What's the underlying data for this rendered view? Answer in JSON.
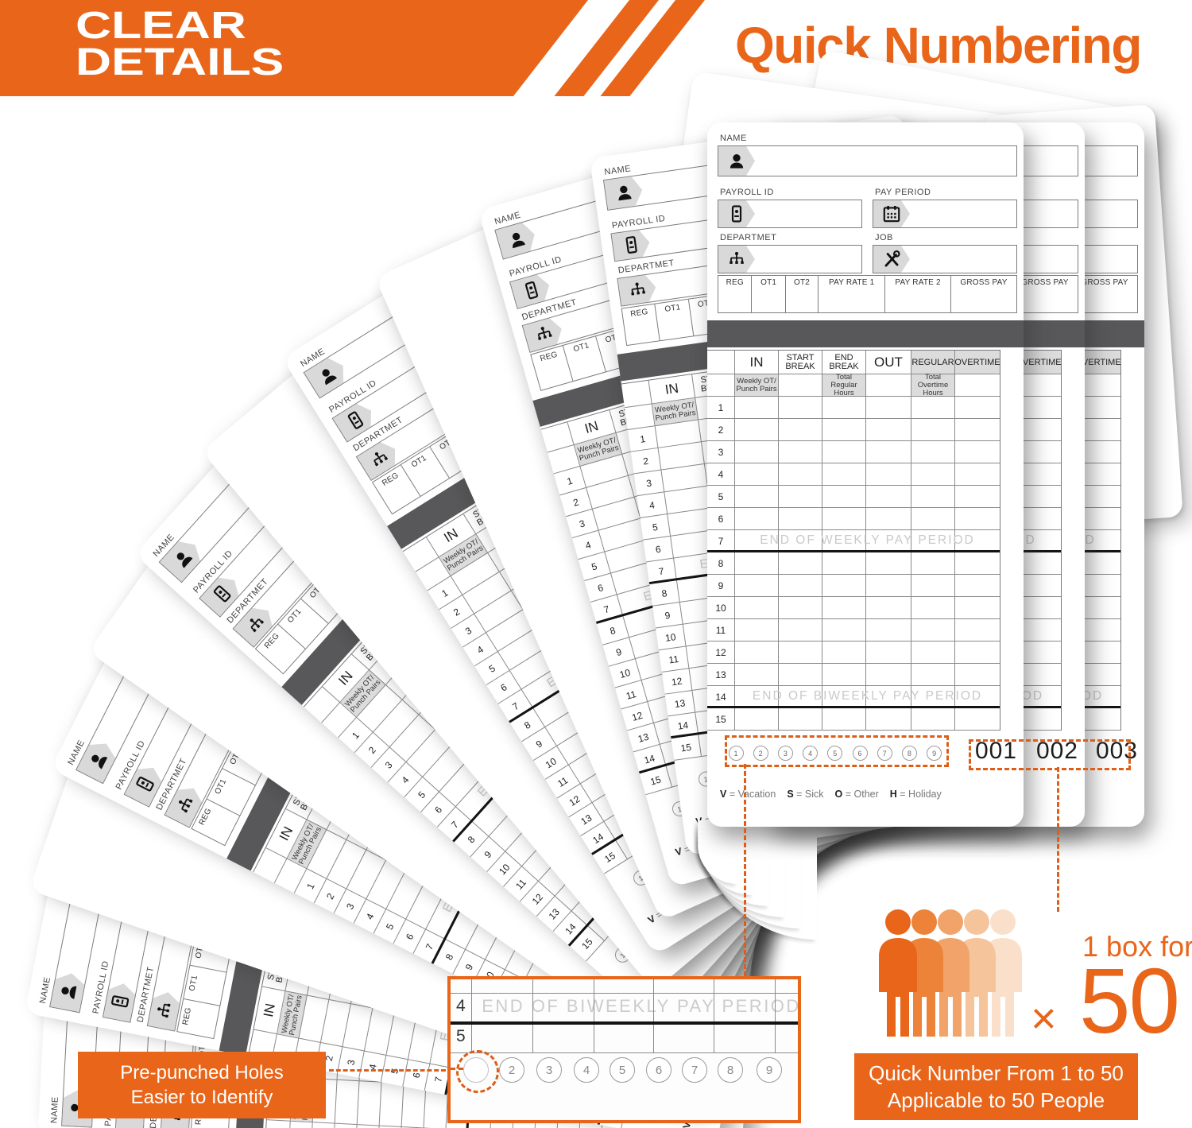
{
  "banner": {
    "line1": "CLEAR",
    "line2": "DETAILS"
  },
  "headline": "Quick Numbering",
  "card": {
    "fields": {
      "name": "NAME",
      "payroll": "PAYROLL ID",
      "pay_period": "PAY PERIOD",
      "department": "DEPARTMET",
      "job": "JOB"
    },
    "pay_columns": [
      "REG",
      "OT1",
      "OT2",
      "PAY RATE 1",
      "PAY RATE 2",
      "GROSS PAY"
    ],
    "time_columns": [
      "IN",
      "START BREAK",
      "END BREAK",
      "OUT",
      "REGULAR",
      "OVERTIME"
    ],
    "subheaders": {
      "in": "Weekly OT/\nPunch Pairs",
      "end_break": "Total Regular\nHours",
      "regular": "Total Overtime\nHours"
    },
    "rows": [
      1,
      2,
      3,
      4,
      5,
      6,
      7,
      8,
      9,
      10,
      11,
      12,
      13,
      14,
      15
    ],
    "watermark_weekly": "END OF WEEKLY PAY PERIOD",
    "watermark_biweekly": "END OF BIWEEKLY PAY PERIOD",
    "punch_numbers": [
      1,
      2,
      3,
      4,
      5,
      6,
      7,
      8,
      9
    ],
    "card_numbers": [
      "001",
      "002",
      "003"
    ],
    "legend": [
      {
        "key": "V",
        "value": "Vacation"
      },
      {
        "key": "S",
        "value": "Sick"
      },
      {
        "key": "O",
        "value": "Other"
      },
      {
        "key": "H",
        "value": "Holiday"
      }
    ]
  },
  "magnifier": {
    "row_labels": [
      "4",
      "5"
    ],
    "watermark": "END OF BIWEEKLY PAY PERIOD",
    "holes": [
      "",
      "2",
      "3",
      "4",
      "5",
      "6",
      "7",
      "8",
      "9"
    ]
  },
  "callouts": {
    "prepunched_line1": "Pre-punched Holes",
    "prepunched_line2": "Easier to Identify",
    "box_for": "1 box for",
    "times_symbol": "×",
    "count": "50",
    "quick_line1": "Quick Number From 1 to 50",
    "quick_line2": "Applicable to 50 People"
  },
  "colors": {
    "orange": "#E8651A",
    "dash_orange": "#DC5E17",
    "bar_gray": "#58585A",
    "cell_gray": "#DCDCDC",
    "watermark_gray": "#C9C9C9"
  }
}
